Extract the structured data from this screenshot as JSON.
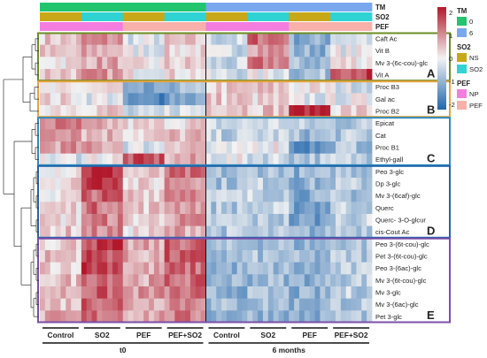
{
  "chart_data": {
    "type": "heatmap",
    "annotation_tracks": [
      {
        "label": "TM",
        "values": [
          "0",
          "0",
          "0",
          "0",
          "0",
          "0",
          "0",
          "0",
          "0",
          "0",
          "0",
          "0",
          "0",
          "0",
          "0",
          "0",
          "0",
          "0",
          "0",
          "0",
          "0",
          "0",
          "0",
          "0",
          "0",
          "0",
          "0",
          "0",
          "0",
          "0",
          "0",
          "0",
          "6",
          "6",
          "6",
          "6",
          "6",
          "6",
          "6",
          "6",
          "6",
          "6",
          "6",
          "6",
          "6",
          "6",
          "6",
          "6",
          "6",
          "6",
          "6",
          "6",
          "6",
          "6",
          "6",
          "6",
          "6",
          "6",
          "6",
          "6",
          "6",
          "6",
          "6",
          "6"
        ]
      },
      {
        "label": "SO2",
        "values": [
          "NS",
          "NS",
          "NS",
          "NS",
          "NS",
          "NS",
          "NS",
          "NS",
          "SO2",
          "SO2",
          "SO2",
          "SO2",
          "SO2",
          "SO2",
          "SO2",
          "SO2",
          "NS",
          "NS",
          "NS",
          "NS",
          "NS",
          "NS",
          "NS",
          "NS",
          "SO2",
          "SO2",
          "SO2",
          "SO2",
          "SO2",
          "SO2",
          "SO2",
          "SO2",
          "NS",
          "NS",
          "NS",
          "NS",
          "NS",
          "NS",
          "NS",
          "NS",
          "SO2",
          "SO2",
          "SO2",
          "SO2",
          "SO2",
          "SO2",
          "SO2",
          "SO2",
          "NS",
          "NS",
          "NS",
          "NS",
          "NS",
          "NS",
          "NS",
          "NS",
          "SO2",
          "SO2",
          "SO2",
          "SO2",
          "SO2",
          "SO2",
          "SO2",
          "SO2"
        ]
      },
      {
        "label": "PEF",
        "values": [
          "NP",
          "NP",
          "NP",
          "NP",
          "NP",
          "NP",
          "NP",
          "NP",
          "NP",
          "NP",
          "NP",
          "NP",
          "NP",
          "NP",
          "NP",
          "NP",
          "PEF",
          "PEF",
          "PEF",
          "PEF",
          "PEF",
          "PEF",
          "PEF",
          "PEF",
          "PEF",
          "PEF",
          "PEF",
          "PEF",
          "PEF",
          "PEF",
          "PEF",
          "PEF",
          "NP",
          "NP",
          "NP",
          "NP",
          "NP",
          "NP",
          "NP",
          "NP",
          "NP",
          "NP",
          "NP",
          "NP",
          "NP",
          "NP",
          "NP",
          "NP",
          "PEF",
          "PEF",
          "PEF",
          "PEF",
          "PEF",
          "PEF",
          "PEF",
          "PEF",
          "PEF",
          "PEF",
          "PEF",
          "PEF",
          "PEF",
          "PEF",
          "PEF",
          "PEF"
        ]
      }
    ],
    "legend": {
      "scale_ticks": [
        2,
        1,
        0,
        -1,
        -2
      ],
      "TM": {
        "title": "TM",
        "levels": [
          {
            "label": "0",
            "color": "#22c46e"
          },
          {
            "label": "6",
            "color": "#7aa8ef"
          }
        ]
      },
      "SO2": {
        "title": "SO2",
        "levels": [
          {
            "label": "NS",
            "color": "#c8a818"
          },
          {
            "label": "SO2",
            "color": "#2fd3d3"
          }
        ]
      },
      "PEF": {
        "title": "PEF",
        "levels": [
          {
            "label": "NP",
            "color": "#f47de0"
          },
          {
            "label": "PEF",
            "color": "#f8b0aa"
          }
        ]
      }
    },
    "columns": [
      "Control",
      "SO2",
      "PEF",
      "PEF+SO2",
      "Control",
      "SO2",
      "PEF",
      "PEF+SO2"
    ],
    "time_groups": [
      "t0",
      "6 months"
    ],
    "rows": [
      "Caft Ac",
      "Vit B",
      "Mv 3-(6c-cou)-glc",
      "Vit A",
      "Proc B3",
      "Gal ac",
      "Proc B2",
      "Epicat",
      "Cat",
      "Proc B1",
      "Ethyl-gall",
      "Peo 3-glc",
      "Dp 3-glc",
      "Mv 3-(6caf)-glc",
      "Querc",
      "Querc- 3-O-glcur",
      "cis-Cout Ac",
      "Peo 3-(6t-cou)-glc",
      "Pet 3-(6t-cou)-glc",
      "Peo 3-(6ac)-glc",
      "Mv 3-(6t-cou)-glc",
      "Mv 3-glc",
      "Mv 3-(6ac)-glc",
      "Pet 3-glc"
    ],
    "clusters": [
      {
        "label": "A",
        "color": "#6b8e23",
        "rows": [
          0,
          3
        ]
      },
      {
        "label": "B",
        "color": "#e8a33d",
        "rows": [
          4,
          6
        ]
      },
      {
        "label": "C",
        "color": "#2b8cbe",
        "rows": [
          7,
          10
        ]
      },
      {
        "label": "D",
        "color": "#2166ac",
        "rows": [
          11,
          16
        ]
      },
      {
        "label": "E",
        "color": "#7b4fa8",
        "rows": [
          17,
          23
        ]
      }
    ],
    "group_values": [
      [
        0.4,
        0.9,
        -0.2,
        0.3,
        -0.4,
        1.3,
        -1.0,
        -0.2
      ],
      [
        0.3,
        0.6,
        -0.1,
        0.2,
        -0.3,
        0.9,
        -0.9,
        -0.1
      ],
      [
        0.2,
        0.7,
        0.0,
        0.3,
        -0.5,
        1.1,
        -0.8,
        0.2
      ],
      [
        0.5,
        0.8,
        0.1,
        0.2,
        -0.3,
        -0.1,
        -0.7,
        1.6
      ],
      [
        -0.1,
        0.2,
        -1.3,
        -0.8,
        0.3,
        0.4,
        0.1,
        -0.2
      ],
      [
        0.2,
        -0.1,
        -1.5,
        -1.0,
        0.4,
        0.2,
        -0.2,
        -0.1
      ],
      [
        0.3,
        0.4,
        -0.6,
        -0.2,
        0.6,
        0.5,
        2.0,
        0.3
      ],
      [
        1.0,
        0.5,
        0.2,
        0.3,
        -0.4,
        -0.3,
        -0.6,
        -0.6
      ],
      [
        1.1,
        0.6,
        0.3,
        0.5,
        -0.5,
        -0.4,
        -0.8,
        -0.6
      ],
      [
        0.8,
        0.7,
        -0.2,
        0.6,
        -0.3,
        0.1,
        -1.4,
        -0.7
      ],
      [
        -0.2,
        0.1,
        1.4,
        0.6,
        -0.1,
        -0.3,
        -0.6,
        -0.5
      ],
      [
        0.2,
        1.8,
        0.3,
        1.1,
        -0.8,
        -0.6,
        -0.9,
        -0.6
      ],
      [
        0.3,
        1.9,
        0.2,
        1.0,
        -0.7,
        -0.5,
        -0.9,
        -0.6
      ],
      [
        0.1,
        1.3,
        0.5,
        1.2,
        -0.5,
        -0.4,
        -1.0,
        -0.7
      ],
      [
        0.3,
        1.2,
        0.4,
        0.9,
        -0.6,
        -0.5,
        -1.1,
        -0.4
      ],
      [
        0.2,
        1.0,
        0.3,
        0.8,
        -0.5,
        -0.6,
        -1.2,
        -0.4
      ],
      [
        0.4,
        0.9,
        0.2,
        0.7,
        -0.6,
        -0.7,
        -0.9,
        -0.5
      ],
      [
        0.4,
        1.6,
        0.6,
        1.3,
        -0.8,
        -0.7,
        -0.9,
        -0.6
      ],
      [
        0.5,
        1.5,
        0.6,
        1.3,
        -0.8,
        -0.7,
        -0.9,
        -0.6
      ],
      [
        0.4,
        1.7,
        0.6,
        1.2,
        -0.9,
        -0.8,
        -1.0,
        -0.6
      ],
      [
        0.5,
        1.4,
        0.7,
        1.2,
        -0.8,
        -0.8,
        -0.9,
        -0.5
      ],
      [
        0.6,
        1.3,
        0.8,
        1.1,
        -0.9,
        -0.8,
        -1.0,
        -0.5
      ],
      [
        0.5,
        1.4,
        0.7,
        1.1,
        -0.8,
        -0.7,
        -0.9,
        -0.6
      ],
      [
        0.6,
        1.2,
        0.7,
        1.0,
        -0.9,
        -0.8,
        -1.0,
        -0.6
      ]
    ],
    "color_scale": {
      "min": -2,
      "max": 2,
      "low": "#2166ac",
      "mid": "#f2f2f2",
      "high": "#b2182b"
    }
  }
}
